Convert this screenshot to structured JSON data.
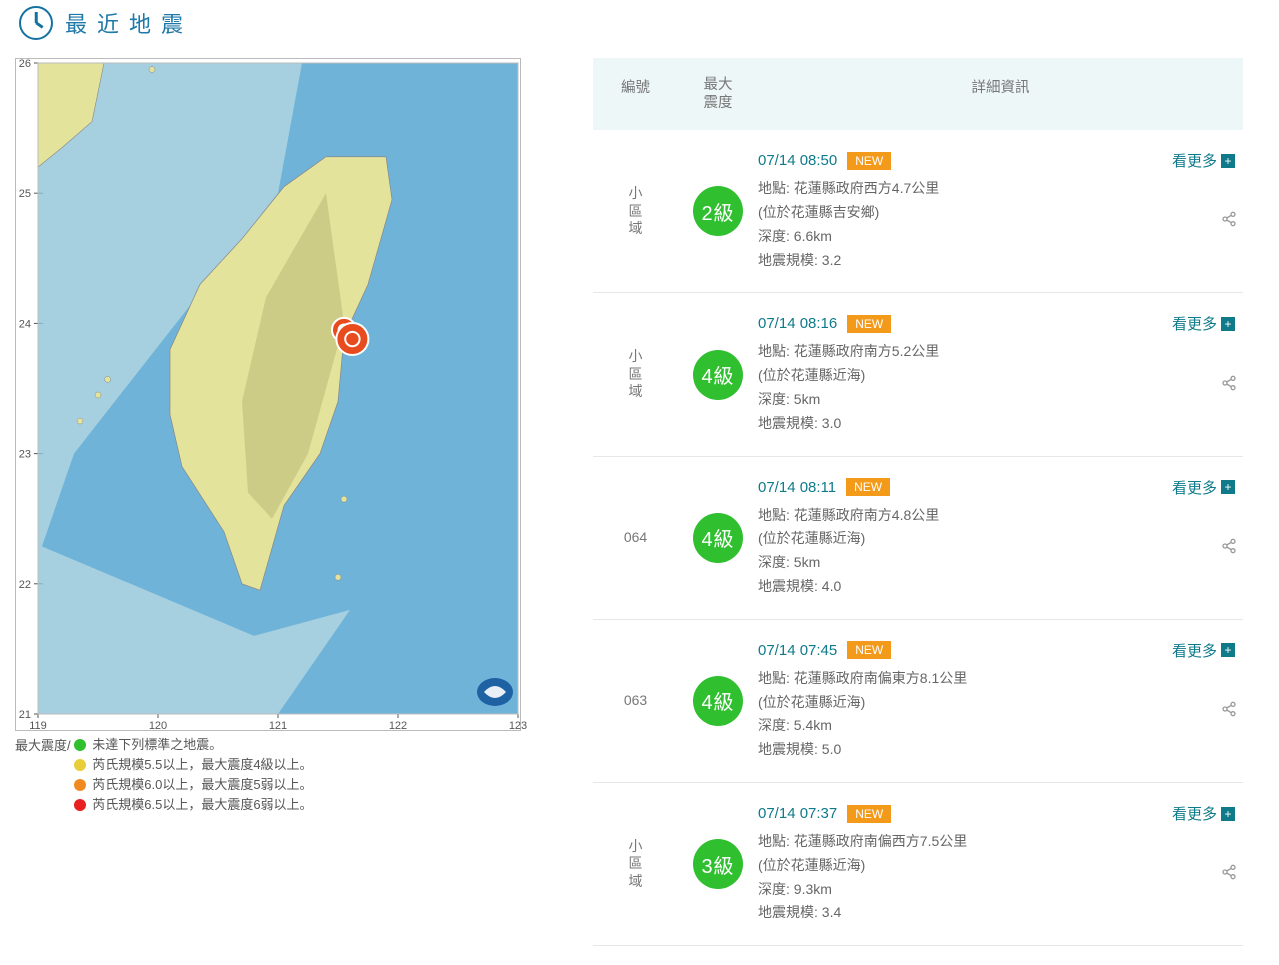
{
  "title": "最近地震",
  "map": {
    "lat_axis": [
      21,
      22,
      23,
      24,
      25,
      26
    ],
    "lon_axis": [
      119,
      120,
      121,
      122,
      123
    ],
    "lon_min": 119,
    "lon_max": 123,
    "lat_min": 21,
    "lat_max": 26,
    "sea_color": "#6fb4d8",
    "shallow_color": "#a6cfe0",
    "land_fill": "#e3e39b",
    "mountain_fill": "#c4c480",
    "border": "#bbbbbb",
    "grid": "#6a97b0",
    "tick_color": "#555555",
    "epicenters": [
      {
        "lon": 121.55,
        "lat": 23.95,
        "r": 12,
        "fill": "#e84b1d",
        "ring": "#ffffff"
      },
      {
        "lon": 121.62,
        "lat": 23.88,
        "r": 16,
        "fill": "#e84b1d",
        "ring": "#ffffff"
      }
    ],
    "logo_bg": "#1f62a4"
  },
  "legend": {
    "prefix": "最大震度/",
    "items": [
      {
        "color": "#2fbf2f",
        "text": "未達下列標準之地震。"
      },
      {
        "color": "#e8cf3a",
        "text": "芮氏規模5.5以上，最大震度4級以上。"
      },
      {
        "color": "#f08a1f",
        "text": "芮氏規模6.0以上，最大震度5弱以上。"
      },
      {
        "color": "#e82020",
        "text": "芮氏規模6.5以上，最大震度6弱以上。"
      }
    ]
  },
  "columns": {
    "no": "編號",
    "intensity": "最大\n震度",
    "detail": "詳細資訊"
  },
  "labels": {
    "more": "看更多",
    "new": "NEW",
    "loc": "地點:",
    "depth": "深度:",
    "mag": "地震規模:"
  },
  "intensity_bg": "#2fbf2f",
  "rows": [
    {
      "no": "小區域",
      "intensity": "2級",
      "ts": "07/14 08:50",
      "new": true,
      "loc": "花蓮縣政府西方4.7公里",
      "loc2": "(位於花蓮縣吉安鄉)",
      "depth": "6.6km",
      "mag": "3.2"
    },
    {
      "no": "小區域",
      "intensity": "4級",
      "ts": "07/14 08:16",
      "new": true,
      "loc": "花蓮縣政府南方5.2公里",
      "loc2": "(位於花蓮縣近海)",
      "depth": "5km",
      "mag": "3.0"
    },
    {
      "no": "064",
      "intensity": "4級",
      "ts": "07/14 08:11",
      "new": true,
      "loc": "花蓮縣政府南方4.8公里",
      "loc2": "(位於花蓮縣近海)",
      "depth": "5km",
      "mag": "4.0"
    },
    {
      "no": "063",
      "intensity": "4級",
      "ts": "07/14 07:45",
      "new": true,
      "loc": "花蓮縣政府南偏東方8.1公里",
      "loc2": "(位於花蓮縣近海)",
      "depth": "5.4km",
      "mag": "5.0"
    },
    {
      "no": "小區域",
      "intensity": "3級",
      "ts": "07/14 07:37",
      "new": true,
      "loc": "花蓮縣政府南偏西方7.5公里",
      "loc2": "(位於花蓮縣近海)",
      "depth": "9.3km",
      "mag": "3.4"
    }
  ]
}
